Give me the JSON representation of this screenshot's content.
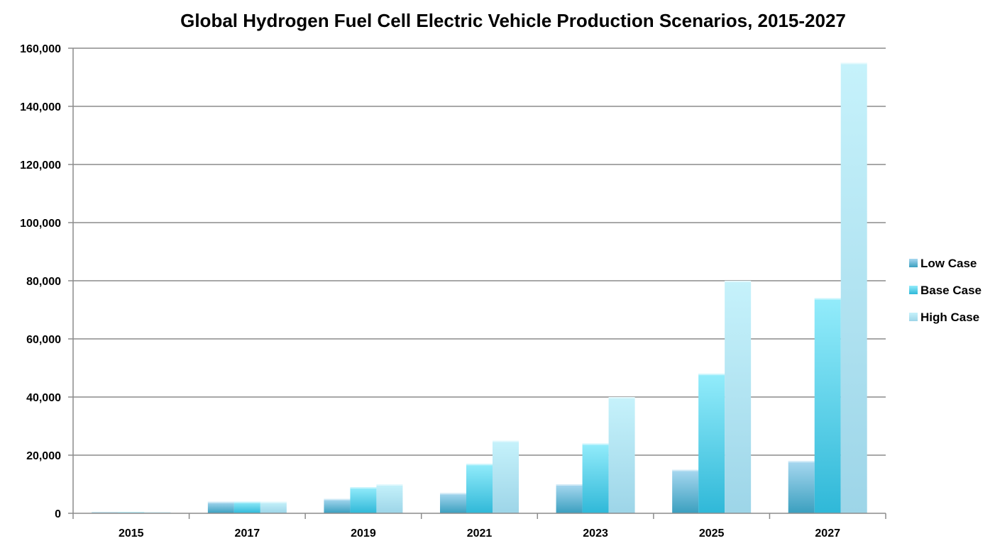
{
  "chart_data": {
    "type": "bar",
    "title": "Global Hydrogen Fuel Cell Electric Vehicle Production Scenarios, 2015-2027",
    "xlabel": "",
    "ylabel": "",
    "categories": [
      "2015",
      "2017",
      "2019",
      "2021",
      "2023",
      "2025",
      "2027"
    ],
    "series": [
      {
        "name": "Low Case",
        "values": [
          500,
          4000,
          5000,
          7000,
          10000,
          15000,
          18000
        ]
      },
      {
        "name": "Base Case",
        "values": [
          500,
          4000,
          9000,
          17000,
          24000,
          48000,
          74000
        ]
      },
      {
        "name": "High Case",
        "values": [
          500,
          4000,
          10000,
          25000,
          40000,
          80000,
          155000
        ]
      }
    ],
    "ylim": [
      0,
      160000
    ],
    "yticks": [
      0,
      20000,
      40000,
      60000,
      80000,
      100000,
      120000,
      140000,
      160000
    ],
    "ytick_labels": [
      "0",
      "20,000",
      "40,000",
      "60,000",
      "80,000",
      "100,000",
      "120,000",
      "140,000",
      "160,000"
    ],
    "grid": true,
    "legend_position": "right",
    "colors": {
      "low_top": "#a8d8f0",
      "low_bottom": "#3a9fbf",
      "base_top": "#93ecfb",
      "base_bottom": "#2fb8d8",
      "high_top": "#c6f2fb",
      "high_bottom": "#9dd5e8",
      "grid": "#8c8c8c",
      "axis": "#8c8c8c"
    }
  }
}
